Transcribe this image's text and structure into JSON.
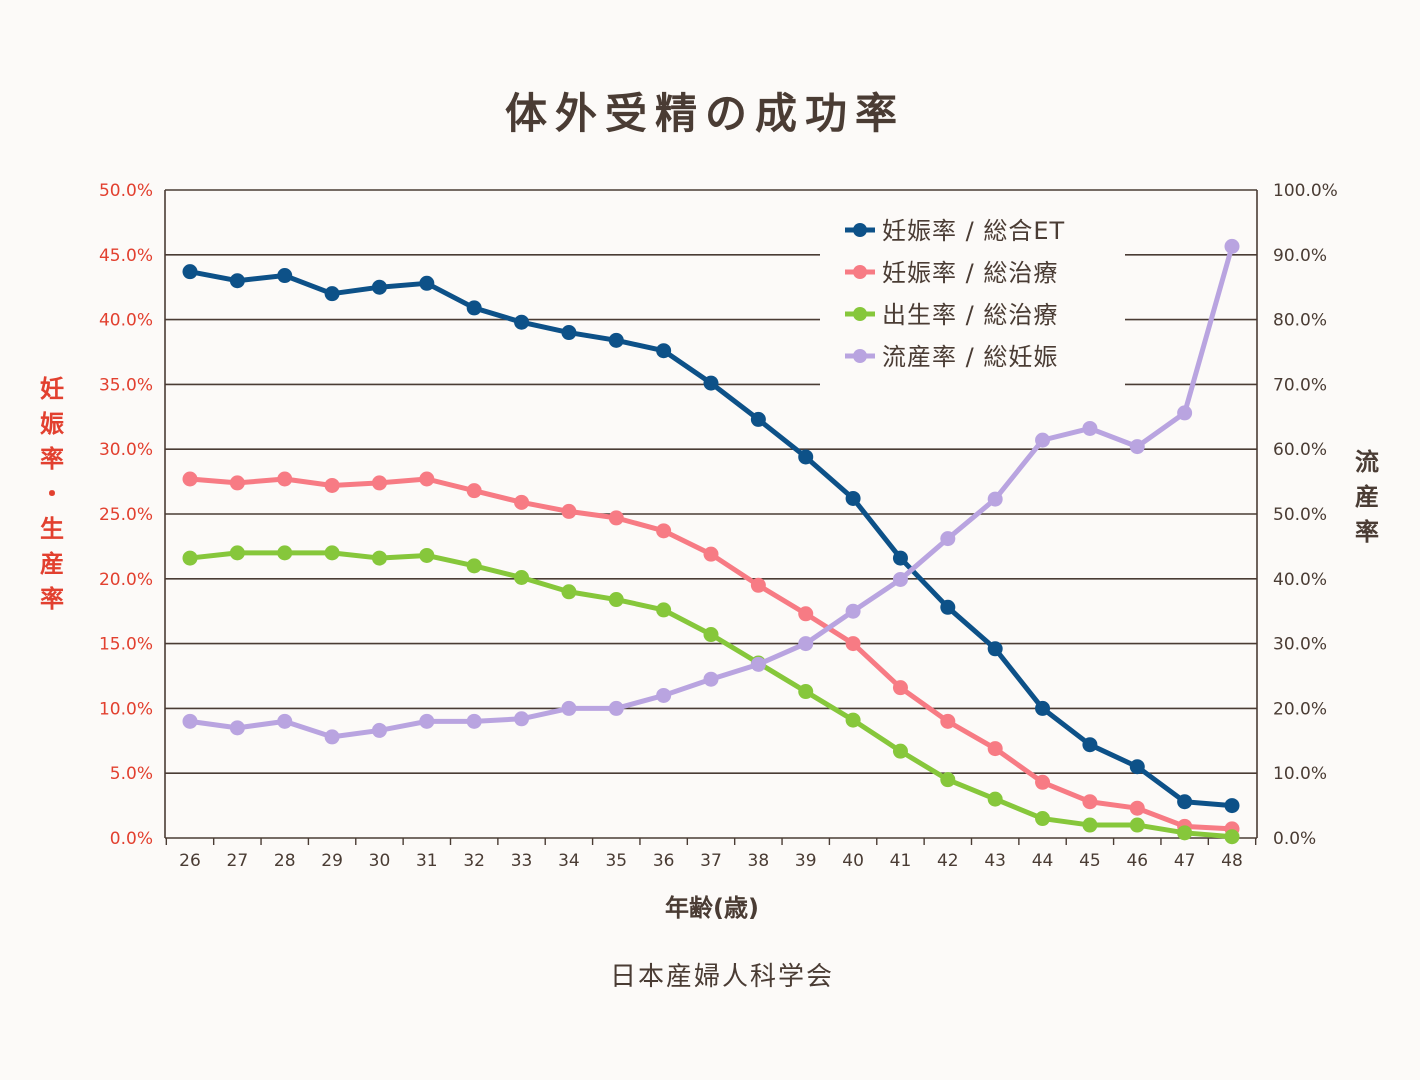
{
  "chart_data": {
    "type": "line",
    "title": "体外受精の成功率",
    "xlabel": "年齢(歳)",
    "ylabel_left": "妊娠率・生産率",
    "ylabel_right": "流産率",
    "source": "日本産婦人科学会",
    "categories": [
      "26",
      "27",
      "28",
      "29",
      "30",
      "31",
      "32",
      "33",
      "34",
      "35",
      "36",
      "37",
      "38",
      "39",
      "40",
      "41",
      "42",
      "43",
      "44",
      "45",
      "46",
      "47",
      "48"
    ],
    "ylim_left": [
      0,
      50
    ],
    "ylim_right": [
      0,
      100
    ],
    "yticks_left": [
      "0.0%",
      "5.0%",
      "10.0%",
      "15.0%",
      "20.0%",
      "25.0%",
      "30.0%",
      "35.0%",
      "40.0%",
      "45.0%",
      "50.0%"
    ],
    "yticks_right": [
      "0.0%",
      "10.0%",
      "20.0%",
      "30.0%",
      "40.0%",
      "50.0%",
      "60.0%",
      "70.0%",
      "80.0%",
      "90.0%",
      "100.0%"
    ],
    "grid": true,
    "legend_position": "top-right",
    "series": [
      {
        "name": "妊娠率 / 総合ET",
        "axis": "left",
        "color": "#0d5188",
        "values": [
          43.7,
          43.0,
          43.4,
          42.0,
          42.5,
          42.8,
          40.9,
          39.8,
          39.0,
          38.4,
          37.6,
          35.1,
          32.3,
          29.4,
          26.2,
          21.6,
          17.8,
          14.6,
          10.0,
          7.2,
          5.5,
          2.8,
          2.5
        ]
      },
      {
        "name": "妊娠率 / 総治療",
        "axis": "left",
        "color": "#f77b84",
        "values": [
          27.7,
          27.4,
          27.7,
          27.2,
          27.4,
          27.7,
          26.8,
          25.9,
          25.2,
          24.7,
          23.7,
          21.9,
          19.5,
          17.3,
          15.0,
          11.6,
          9.0,
          6.9,
          4.3,
          2.8,
          2.3,
          0.9,
          0.7
        ]
      },
      {
        "name": "出生率 / 総治療",
        "axis": "left",
        "color": "#86c73b",
        "values": [
          21.6,
          22.0,
          22.0,
          22.0,
          21.6,
          21.8,
          21.0,
          20.1,
          19.0,
          18.4,
          17.6,
          15.7,
          13.5,
          11.3,
          9.1,
          6.7,
          4.5,
          3.0,
          1.5,
          1.0,
          1.0,
          0.4,
          0.1
        ]
      },
      {
        "name": "流産率 / 総妊娠",
        "axis": "right",
        "color": "#b9a4e0",
        "values": [
          18.0,
          17.0,
          18.0,
          15.6,
          16.6,
          18.0,
          18.0,
          18.4,
          20.0,
          20.0,
          22.0,
          24.5,
          26.8,
          30.0,
          35.0,
          39.9,
          46.2,
          52.3,
          61.4,
          63.2,
          60.4,
          65.6,
          91.3
        ]
      }
    ]
  }
}
